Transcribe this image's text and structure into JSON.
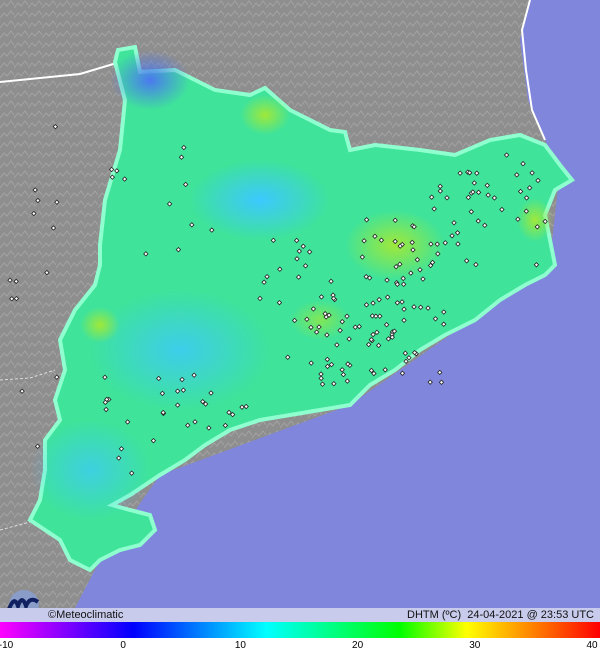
{
  "map": {
    "region": "Catalonia",
    "variable_label": "DHTM (ºC)",
    "timestamp": "24-04-2021 @ 23:53 UTC",
    "credit": "©Meteoclimatic",
    "logo_text": "Meteoclimatic",
    "colors": {
      "land": "#8e8e8e",
      "sea": "#7f86dc",
      "region_fill": "#3fe39a",
      "border": "#ffffff",
      "infobar": "#c8cbeb"
    }
  },
  "legend": {
    "min": -10,
    "max": 40,
    "ticks": [
      "-10",
      "0",
      "10",
      "20",
      "30",
      "40"
    ],
    "gradient": [
      "#ff00ff",
      "#8000ff",
      "#0000ff",
      "#0080ff",
      "#00ffff",
      "#00ff80",
      "#00ff00",
      "#ffff00",
      "#ff8000",
      "#ff0000"
    ]
  }
}
